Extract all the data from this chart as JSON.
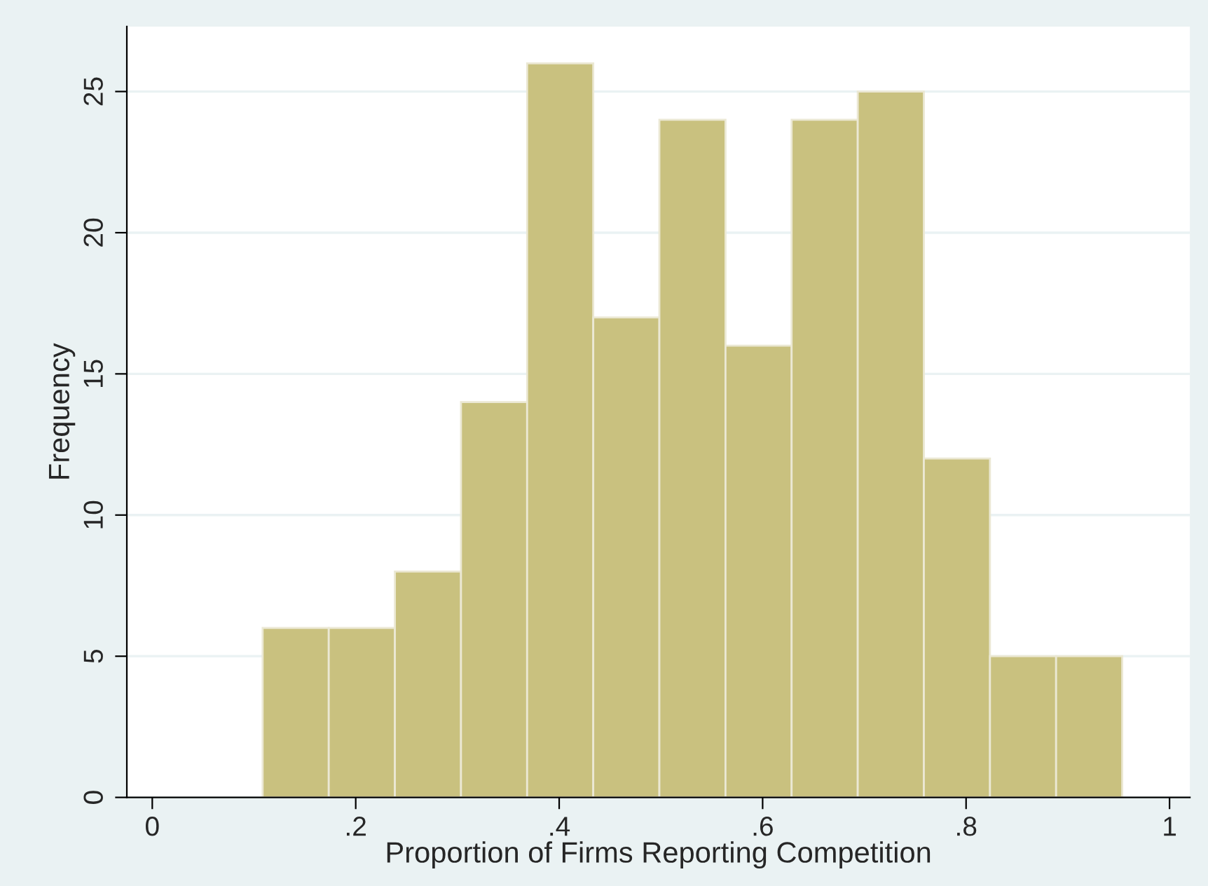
{
  "chart_data": {
    "type": "histogram",
    "xlabel": "Proportion of Firms Reporting Competition",
    "ylabel": "Frequency",
    "bins": [
      0.1085,
      0.1735,
      0.2385,
      0.3035,
      0.3685,
      0.4335,
      0.4985,
      0.5635,
      0.6285,
      0.6935,
      0.7585,
      0.8235,
      0.8885,
      0.9535
    ],
    "values": [
      6,
      6,
      8,
      14,
      26,
      17,
      24,
      16,
      24,
      25,
      12,
      5,
      5
    ],
    "color": "#c9c17f",
    "xlim": [
      -0.025,
      1.02
    ],
    "ylim": [
      0,
      27.3
    ],
    "xticks": [
      0,
      {
        "value": 0.2,
        "label": ".2"
      },
      {
        "value": 0.4,
        "label": ".4"
      },
      {
        "value": 0.6,
        "label": ".6"
      },
      {
        "value": 0.8,
        "label": ".8"
      },
      1
    ],
    "yticks": [
      0,
      5,
      10,
      15,
      20,
      25
    ],
    "grid": "y"
  }
}
